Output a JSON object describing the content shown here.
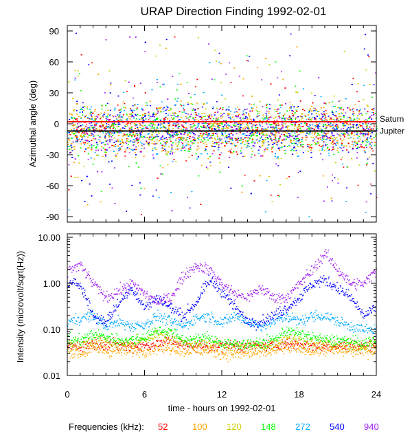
{
  "chart_data": [
    {
      "type": "scatter",
      "title": "URAP Direction Finding  1992-02-01",
      "ylabel": "Azimuthal angle (deg)",
      "xlim": [
        0,
        24
      ],
      "ylim": [
        -90,
        90
      ],
      "yticks": [
        90,
        60,
        30,
        0,
        -30,
        -60,
        -90
      ],
      "reference_lines": [
        {
          "name": "Saturn",
          "y": 2,
          "color": "#ff0000"
        },
        {
          "name": "Jupiter",
          "y": -7,
          "color": "#000000"
        }
      ],
      "scatter_center_deg": -5,
      "scatter_spread_deg": 12
    },
    {
      "type": "line",
      "ylabel": "Intensity (microvolt/sqrt(Hz))",
      "xlabel": "time - hours on 1992-02-01",
      "xlim": [
        0,
        24
      ],
      "ylim": [
        0.01,
        10
      ],
      "yscale": "log",
      "yticks": [
        "10.00",
        "1.00",
        "0.10",
        "0.01"
      ],
      "xticks": [
        0,
        6,
        12,
        18,
        24
      ],
      "x": [
        0,
        1,
        2,
        3,
        4,
        5,
        6,
        7,
        8,
        9,
        10,
        11,
        12,
        13,
        14,
        15,
        16,
        17,
        18,
        19,
        20,
        21,
        22,
        23,
        24
      ],
      "series": [
        {
          "name": "52",
          "color": "#ff0000",
          "values": [
            0.045,
            0.045,
            0.05,
            0.05,
            0.045,
            0.045,
            0.045,
            0.05,
            0.06,
            0.045,
            0.045,
            0.045,
            0.045,
            0.045,
            0.045,
            0.045,
            0.045,
            0.05,
            0.05,
            0.045,
            0.045,
            0.045,
            0.045,
            0.045,
            0.045
          ]
        },
        {
          "name": "100",
          "color": "#ffa500",
          "values": [
            0.035,
            0.03,
            0.04,
            0.035,
            0.035,
            0.035,
            0.035,
            0.04,
            0.04,
            0.035,
            0.035,
            0.035,
            0.03,
            0.03,
            0.03,
            0.032,
            0.035,
            0.04,
            0.04,
            0.035,
            0.035,
            0.035,
            0.035,
            0.035,
            0.035
          ]
        },
        {
          "name": "120",
          "color": "#cccc00",
          "values": [
            0.05,
            0.05,
            0.06,
            0.055,
            0.05,
            0.05,
            0.06,
            0.08,
            0.07,
            0.05,
            0.05,
            0.05,
            0.045,
            0.045,
            0.045,
            0.045,
            0.05,
            0.07,
            0.06,
            0.05,
            0.05,
            0.05,
            0.045,
            0.045,
            0.05
          ]
        },
        {
          "name": "148",
          "color": "#00ff00",
          "values": [
            0.06,
            0.06,
            0.08,
            0.07,
            0.06,
            0.06,
            0.07,
            0.1,
            0.09,
            0.06,
            0.06,
            0.07,
            0.05,
            0.05,
            0.05,
            0.05,
            0.06,
            0.1,
            0.08,
            0.07,
            0.06,
            0.06,
            0.055,
            0.05,
            0.06
          ]
        },
        {
          "name": "272",
          "color": "#00aaff",
          "values": [
            0.15,
            0.18,
            0.2,
            0.12,
            0.15,
            0.12,
            0.13,
            0.2,
            0.15,
            0.12,
            0.18,
            0.2,
            0.14,
            0.2,
            0.15,
            0.12,
            0.15,
            0.2,
            0.15,
            0.2,
            0.2,
            0.15,
            0.12,
            0.1,
            0.1
          ]
        },
        {
          "name": "540",
          "color": "#0000ff",
          "values": [
            1,
            1,
            0.2,
            0.15,
            0.4,
            0.8,
            0.3,
            0.5,
            0.3,
            0.2,
            0.4,
            1.2,
            0.7,
            0.3,
            0.15,
            0.15,
            0.2,
            0.3,
            0.5,
            1,
            1.2,
            0.8,
            0.5,
            0.2,
            0.3
          ]
        },
        {
          "name": "940",
          "color": "#a020f0",
          "values": [
            2,
            2.5,
            1,
            0.5,
            0.7,
            1,
            0.6,
            0.4,
            0.5,
            1.5,
            2.5,
            2,
            1,
            0.6,
            0.5,
            0.8,
            0.5,
            0.5,
            1,
            2,
            4.5,
            2,
            1,
            1,
            2
          ]
        }
      ]
    }
  ],
  "legend": {
    "label": "Frequencies (kHz):"
  }
}
